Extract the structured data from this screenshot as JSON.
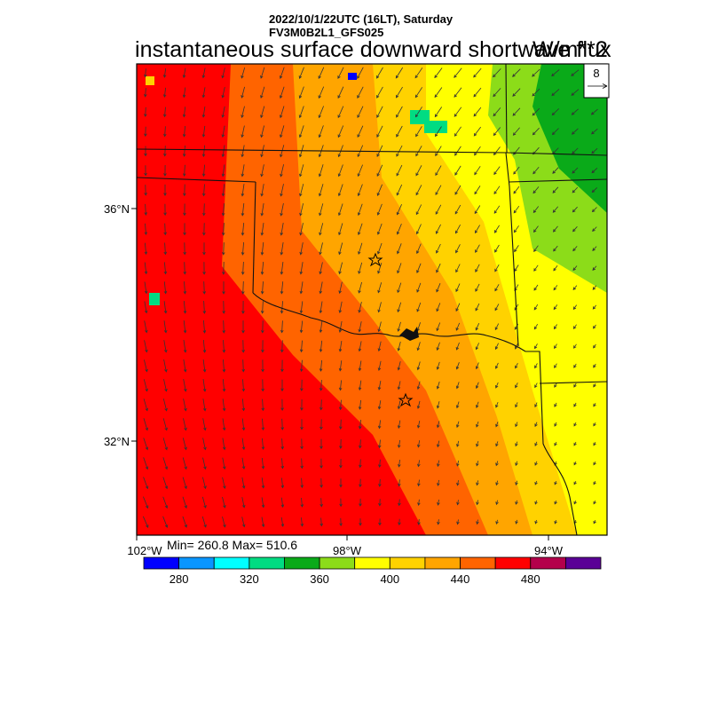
{
  "header": {
    "line1": "2022/10/1/22UTC (16LT), Saturday",
    "line2": "FV3M0B2L1_GFS025",
    "title": "instantaneous surface downward shortwave flux",
    "units": "W/m**2"
  },
  "vector_reference": {
    "value": "8"
  },
  "axes": {
    "lat_labels": [
      "36°N",
      "32°N"
    ],
    "lon_labels": [
      "102°W",
      "98°W",
      "94°W"
    ]
  },
  "stats": {
    "text": "Min= 260.8 Max= 510.6"
  },
  "colorbar": {
    "colors": [
      "#0000ff",
      "#0a96ff",
      "#00ffff",
      "#00dc82",
      "#0aaa19",
      "#8cdc19",
      "#ffff00",
      "#ffd200",
      "#ffa500",
      "#ff6400",
      "#ff0000",
      "#b4004b",
      "#5a0096"
    ],
    "tick_labels": [
      "280",
      "320",
      "360",
      "400",
      "440",
      "480"
    ]
  },
  "field_colors": {
    "band_colors": [
      "#5a0096",
      "#b4004b",
      "#ff0000",
      "#ff6400",
      "#ffa500",
      "#ffd200",
      "#ffff00",
      "#8cdc19",
      "#0aaa19"
    ]
  },
  "markers": [
    "star",
    "star"
  ]
}
